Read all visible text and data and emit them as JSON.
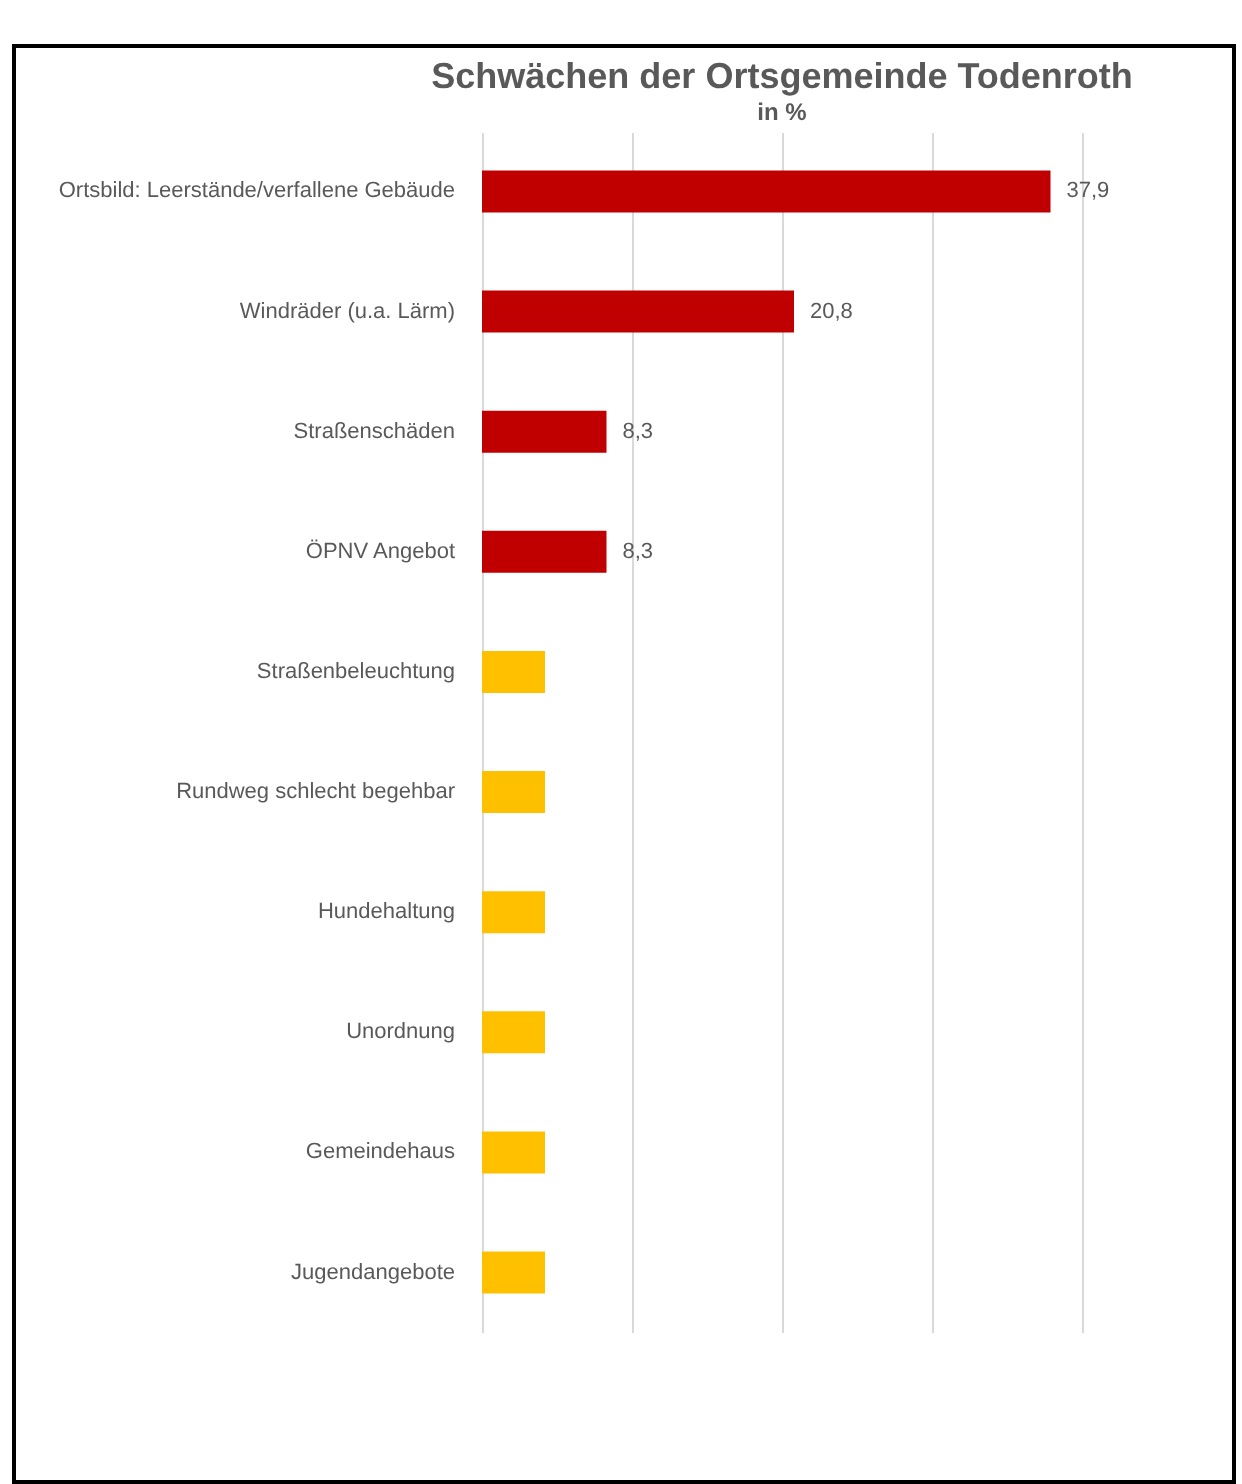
{
  "chart_data": {
    "type": "bar",
    "orientation": "horizontal",
    "title": "Schwächen der Ortsgemeinde Todenroth",
    "subtitle": "in %",
    "categories": [
      "Ortsbild: Leerstände/verfallene Gebäude",
      "Windräder (u.a. Lärm)",
      "Straßenschäden",
      "ÖPNV Angebot",
      "Straßenbeleuchtung",
      "Rundweg schlecht begehbar",
      "Hundehaltung",
      "Unordnung",
      "Gemeindehaus",
      "Jugendangebote"
    ],
    "values": [
      37.9,
      20.8,
      8.3,
      8.3,
      4.2,
      4.2,
      4.2,
      4.2,
      4.2,
      4.2
    ],
    "colors": [
      "#c00000",
      "#c00000",
      "#c00000",
      "#c00000",
      "#ffc000",
      "#ffc000",
      "#ffc000",
      "#ffc000",
      "#ffc000",
      "#ffc000"
    ],
    "value_labels": [
      "37,9",
      "20,8",
      "8,3",
      "8,3",
      null,
      null,
      null,
      null,
      null,
      null
    ],
    "xlim": [
      0,
      40
    ],
    "xticks": [
      {
        "value": 0,
        "label": null
      },
      {
        "value": 10,
        "label": null
      },
      {
        "value": 20,
        "label": null
      },
      {
        "value": 30,
        "label": null
      },
      {
        "value": 40,
        "label": null
      }
    ],
    "grid": "x",
    "tick_labels": "y"
  }
}
